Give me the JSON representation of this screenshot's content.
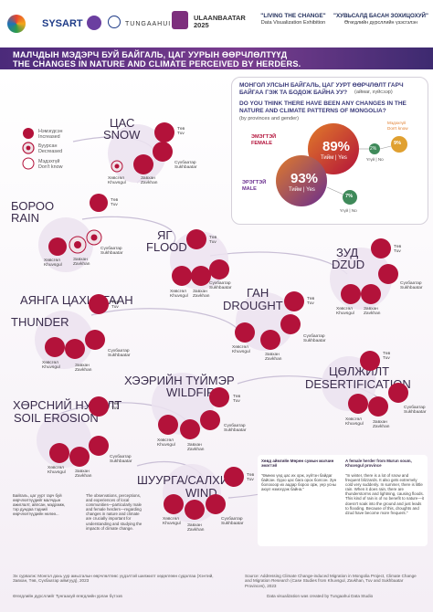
{
  "header": {
    "logos": [
      "SYSART",
      "TUNGAAHUI",
      "ULAANBAATAR 2025"
    ],
    "event_title": "\"LIVING THE CHANGE\"",
    "event_subtitle": "Data Visualization Exhibition",
    "event_title_mn": "\"ХУВЬСАЛД БАСАН ЗОХИЦОХУЙ\"",
    "event_subtitle_mn": "Өгөгдлийн дүрсллийн үзэсгэлэн"
  },
  "title_mn": "МАЛЧДЫН МЭДЭРЧ БУЙ БАЙГАЛЬ, ЦАГ УУРЫН ӨӨРЧЛӨЛТҮҮД",
  "title_en": "THE CHANGES IN NATURE AND CLIMATE PERCEIVED BY HERDERS.",
  "legend": [
    {
      "mn": "Нэмэгдсэн",
      "en": "Increased"
    },
    {
      "mn": "Буурсан",
      "en": "Decreased"
    },
    {
      "mn": "Мэдэхгүй",
      "en": "Don't know"
    }
  ],
  "provinces": {
    "tuv": [
      "Төв",
      "Tuv"
    ],
    "khuvsgul": [
      "Хөвсгөл",
      "Khuvsgul"
    ],
    "zavkhan": [
      "Завхан",
      "Zavkhan"
    ],
    "sukhbaatar": [
      "Сүхбаатар",
      "Sukhbaatar"
    ]
  },
  "topics": [
    {
      "mn": "ЦАС",
      "en": "SNOW"
    },
    {
      "mn": "БОРОО",
      "en": "RAIN"
    },
    {
      "mn": "ЯГ",
      "en": "FLOOD"
    },
    {
      "mn": "ЗУД",
      "en": "DZUD"
    },
    {
      "mn": "АЯНГА ЦАХИЛГААН",
      "en": "THUNDER"
    },
    {
      "mn": "ГАН",
      "en": "DROUGHT"
    },
    {
      "mn": "ХЭЭРИЙН ТҮЙМЭР",
      "en": "WILDFIRE"
    },
    {
      "mn": "ЦӨЛЖИЛТ",
      "en": "DESERTIFICATION"
    },
    {
      "mn": "ХӨРСНИЙ НУРАЛТ",
      "en": "SOIL EROSION"
    },
    {
      "mn": "ШУУРГА/САЛХИ",
      "en": "WIND"
    }
  ],
  "question": {
    "mn": "МОНГОЛ УЛСЫН БАЙГАЛЬ, ЦАГ УУРТ ӨӨРЧЛӨЛТ ГАРЧ БАЙГАА ГЭЖ ТА БОДОЖ БАЙНА УУ?",
    "mn_note": "(аймаг, хүйсээр)",
    "en": "DO YOU THINK THERE HAVE BEEN ANY CHANGES IN THE NATURE AND CLIMATE PATTERNS OF MONGOLIA?",
    "en_note": "(by provinces and gender)"
  },
  "chart_data": {
    "type": "pie",
    "title": "DO YOU THINK THERE HAVE BEEN ANY CHANGES IN THE NATURE AND CLIMATE PATTERNS OF MONGOLIA?",
    "series": [
      {
        "name": "ЭМЭГТЭЙ FEMALE",
        "labels": [
          "Тийм | Yes",
          "Үгүй | No",
          "Мэдэхгүй Don't know"
        ],
        "values": [
          89,
          2,
          9
        ]
      },
      {
        "name": "ЭРЭГТЭЙ MALE",
        "labels": [
          "Тийм | Yes",
          "Үгүй | No"
        ],
        "values": [
          93,
          7
        ]
      }
    ]
  },
  "pies": {
    "female_label_mn": "ЭМЭГТЭЙ",
    "female_label_en": "FEMALE",
    "male_label_mn": "ЭРЭГТЭЙ",
    "male_label_en": "MALE",
    "female_yes": "89%",
    "female_no": "2%",
    "female_dk": "9%",
    "male_yes": "93%",
    "male_no": "7%",
    "yes_label": "Тийм | Yes",
    "no_label": "Үгүй | No",
    "dk_label_mn": "Мэдэхгүй",
    "dk_label_en": "Don't know"
  },
  "quotes": [
    "Байгаль, цаг уурт гарч буй өөрчлөлтүүдийг малчдын ажиглалт, айлсан, мэдрэмж, тэр дундаа тэдний өөрчлөлтүүдийн нөлөө...",
    "The observations, perceptions, and experiences of local communities—particularly male and female herders—regarding changes in nature and climate are crucially important for understanding and studying the impacts of climate change.",
    "Хөвд аймгийн Мөрөн сумын малчин эмэгтэй",
    "A female herder from Murun soum, Khuvsgul province",
    "\"Өмнөх үед цас их орж, хүйтэн байдаг байсан. Одоо цас бага орох болсон. Зун болохоор их аадар бороо орж, үер усны аюул нэмэгдэж байна.\"",
    "\"In winter, there is a lot of snow and frequent blizzards. It also gets extremely cold very suddenly. In summer, there is little rain. When it does rain, there are thunderstorms and lightning, causing floods. This kind of rain is of no benefit to nature—it doesn't soak into the ground and just leads to flooding. Because of this, droughts and dzud have become more frequent.\""
  ],
  "footer": {
    "mn": "Эх сурвалж: Монгол дахь уур амьсгалын өөрчлөлтөөс үүдэлтэй шилжилт хөдөлгөөн судалгаа (Хэнтий, Завхан, Төв, Сүхбаатар аймгууд), 2023",
    "en": "Source: Addressing Climate Change-induced Migration in Mongolia Project, Climate Change and Migration Research (Case Studies from Khuvsgul, Zavkhan, Tuv and Sukhbaatar Provinces), 2023",
    "credit_mn": "Өгөгдлийн дүрсллийг Тунгаахуй өгөгдлийн урлан бүтээв",
    "credit_en": "Data visualization was created by Tungaahui Data Studio"
  },
  "colors": {
    "increased": "#b3123a",
    "decreased": "#e8c9d2",
    "dontknow": "#d9cbe4",
    "purple_band": "#5b2f82",
    "orange": "#e07b2a",
    "green": "#3f8a5a"
  }
}
